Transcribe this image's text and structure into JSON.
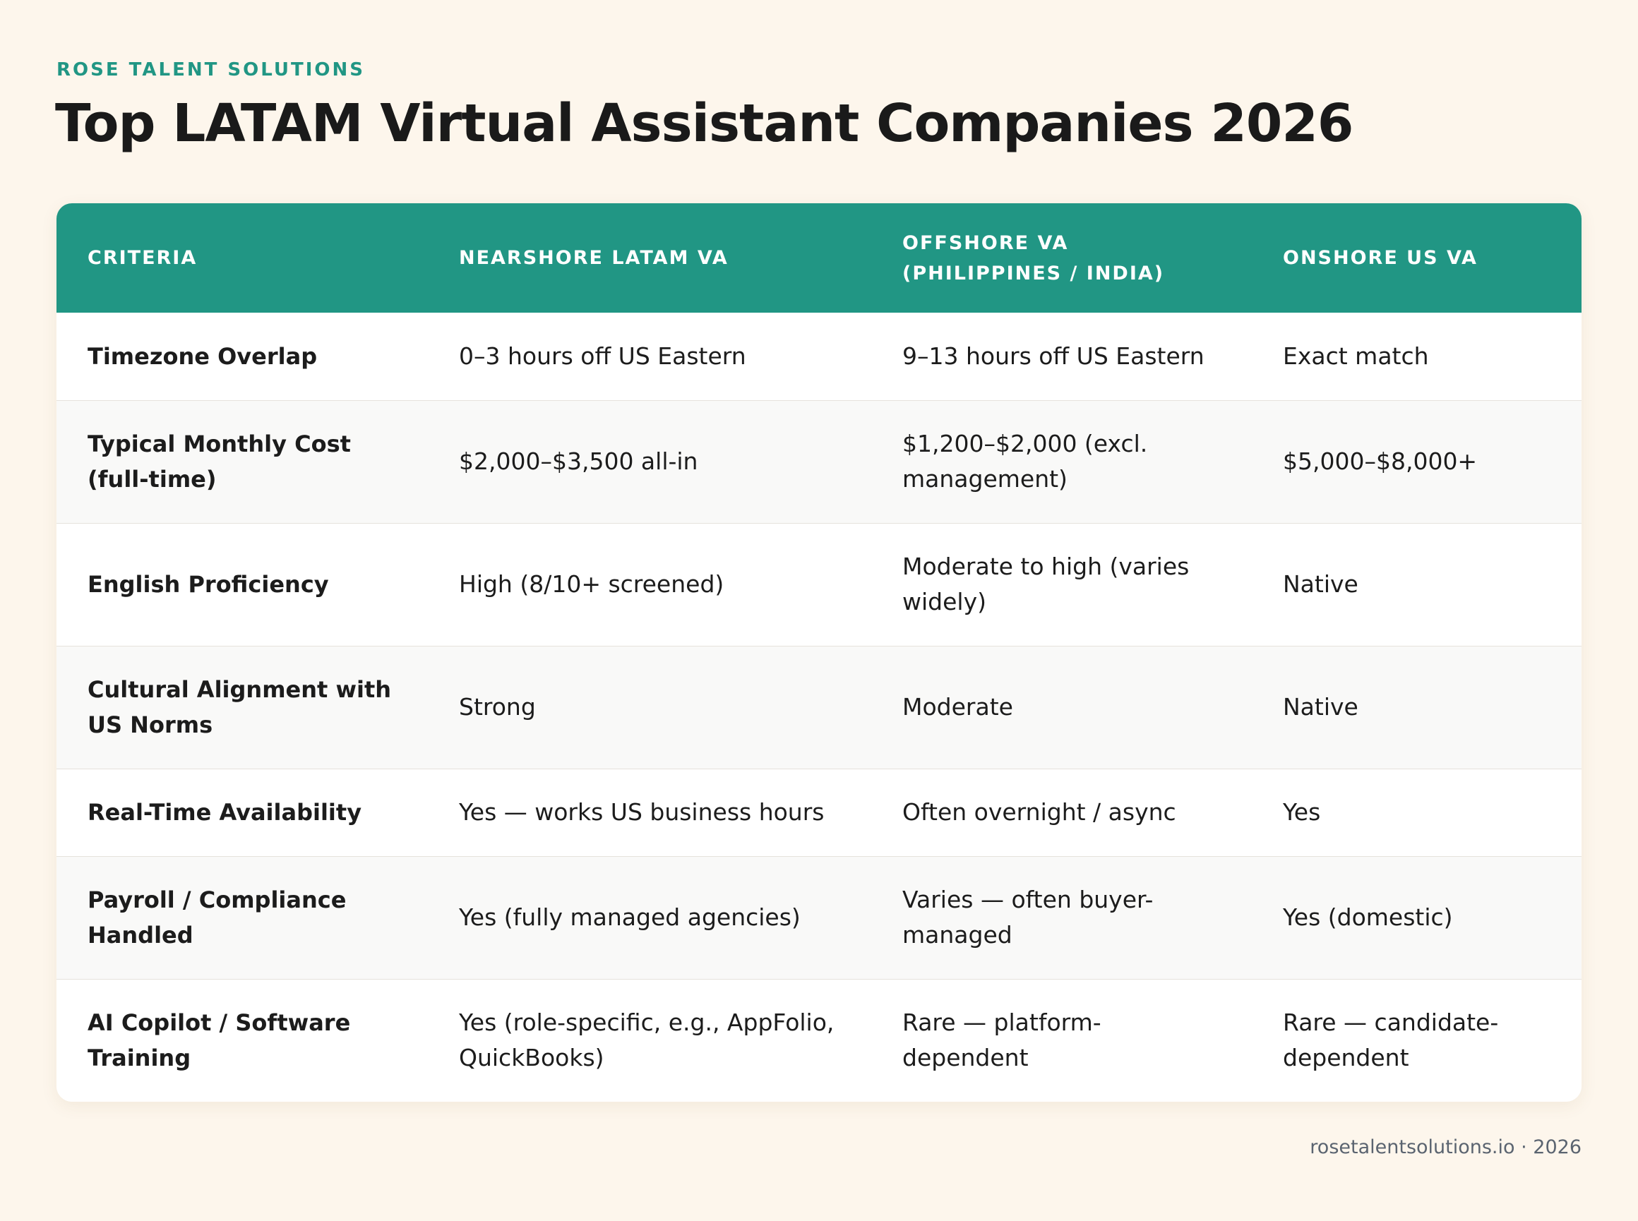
{
  "brand": "ROSE TALENT SOLUTIONS",
  "title": "Top LATAM Virtual Assistant Companies 2026",
  "colors": {
    "accent": "#219684",
    "background": "#fdf6ec",
    "card": "#ffffff",
    "zebra": "#f9f9f8"
  },
  "table": {
    "headers": [
      "CRITERIA",
      "NEARSHORE LATAM VA",
      "OFFSHORE VA (PHILIPPINES / INDIA)",
      "ONSHORE US VA"
    ],
    "rows": [
      [
        "Timezone Overlap",
        "0–3 hours off US Eastern",
        "9–13 hours off US Eastern",
        "Exact match"
      ],
      [
        "Typical Monthly Cost (full-time)",
        "$2,000–$3,500 all-in",
        "$1,200–$2,000 (excl. management)",
        "$5,000–$8,000+"
      ],
      [
        "English Proficiency",
        "High (8/10+ screened)",
        "Moderate to high (varies widely)",
        "Native"
      ],
      [
        "Cultural Alignment with US Norms",
        "Strong",
        "Moderate",
        "Native"
      ],
      [
        "Real-Time Availability",
        "Yes — works US business hours",
        "Often overnight / async",
        "Yes"
      ],
      [
        "Payroll / Compliance Handled",
        "Yes (fully managed agencies)",
        "Varies — often buyer-managed",
        "Yes (domestic)"
      ],
      [
        "AI Copilot / Software Training",
        "Yes (role-specific, e.g., AppFolio, QuickBooks)",
        "Rare — platform-dependent",
        "Rare — candidate-dependent"
      ]
    ]
  },
  "footer": "rosetalentsolutions.io · 2026"
}
